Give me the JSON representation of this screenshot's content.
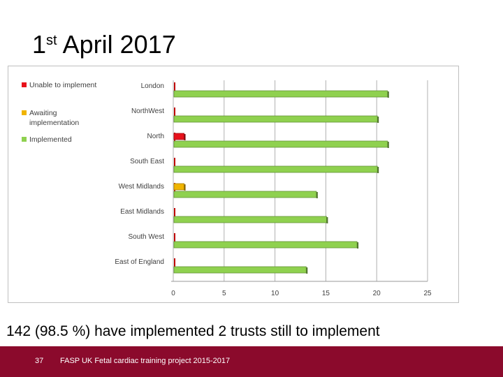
{
  "slide": {
    "title_main": "1",
    "title_sup": "st",
    "title_rest": " April 2017",
    "caption": "142  (98.5 %) have implemented 2 trusts still  to implement",
    "footer_page": "37",
    "footer_text": "FASP UK Fetal cardiac training project 2015-2017"
  },
  "chart_data": {
    "type": "bar",
    "orientation": "horizontal",
    "stacked": true,
    "categories": [
      "London",
      "NorthWest",
      "North",
      "South East",
      "West Midlands",
      "East Midlands",
      "South West",
      "East of England"
    ],
    "series": [
      {
        "name": "Unable to implement",
        "color": "#e8111b",
        "values": [
          0,
          0,
          1,
          0,
          0,
          0,
          0,
          0
        ]
      },
      {
        "name": "Awaiting implementation",
        "color": "#f0b400",
        "values": [
          0,
          0,
          0,
          0,
          1,
          0,
          0,
          0
        ]
      },
      {
        "name": "Implemented",
        "color": "#8fd14f",
        "values": [
          21,
          20,
          21,
          20,
          14,
          15,
          18,
          13
        ]
      }
    ],
    "legend_labels": [
      [
        "Unable to implement"
      ],
      [
        "Awaiting",
        "implementation"
      ],
      [
        "Implemented"
      ]
    ],
    "xlim": [
      0,
      25
    ],
    "xticks": [
      "0",
      "5",
      "10",
      "15",
      "20",
      "25"
    ],
    "legend_position": "left",
    "grid": true
  }
}
